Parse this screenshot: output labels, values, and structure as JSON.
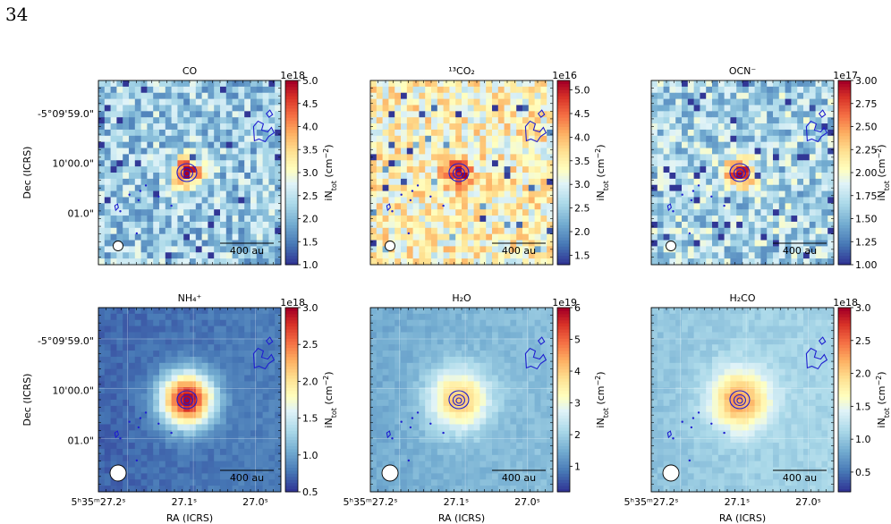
{
  "page": {
    "number": "34"
  },
  "chart_data": [
    {
      "type": "heatmap",
      "title": "CO",
      "xlabel": "",
      "ylabel": "Dec (ICRS)",
      "ytick_labels": [
        "-5°09'59.0\"",
        "10'00.0\"",
        "01.0\""
      ],
      "xtick_labels": [],
      "colorbar": {
        "label": "iN_tot (cm^-2)",
        "multiplier": "1e18",
        "range": [
          1.0,
          5.0
        ],
        "ticks": [
          "1.0",
          "1.5",
          "2.0",
          "2.5",
          "3.0",
          "3.5",
          "4.0",
          "4.5",
          "5.0"
        ]
      },
      "background_level": 2.2,
      "peak_value": 5.0,
      "scale_bar": "400 au",
      "colormap": "RdYlBu_r"
    },
    {
      "type": "heatmap",
      "title": "¹³CO₂",
      "xlabel": "",
      "ylabel": "",
      "ytick_labels": [],
      "xtick_labels": [],
      "colorbar": {
        "label": "iN_tot (cm^-2)",
        "multiplier": "1e16",
        "range": [
          1.3,
          5.2
        ],
        "ticks": [
          "1.5",
          "2.0",
          "2.5",
          "3.0",
          "3.5",
          "4.0",
          "4.5",
          "5.0"
        ]
      },
      "background_level": 3.4,
      "peak_value": 5.2,
      "scale_bar": "400 au",
      "colormap": "RdYlBu_r"
    },
    {
      "type": "heatmap",
      "title": "OCN⁻",
      "xlabel": "",
      "ylabel": "",
      "ytick_labels": [],
      "xtick_labels": [],
      "colorbar": {
        "label": "iN_tot (cm^-2)",
        "multiplier": "1e17",
        "range": [
          1.0,
          3.0
        ],
        "ticks": [
          "1.00",
          "1.25",
          "1.50",
          "1.75",
          "2.00",
          "2.25",
          "2.50",
          "2.75",
          "3.00"
        ]
      },
      "background_level": 1.65,
      "peak_value": 3.0,
      "scale_bar": "400 au",
      "colormap": "RdYlBu_r"
    },
    {
      "type": "heatmap",
      "title": "NH₄⁺",
      "xlabel": "RA (ICRS)",
      "ylabel": "Dec (ICRS)",
      "ytick_labels": [
        "-5°09'59.0\"",
        "10'00.0\"",
        "01.0\""
      ],
      "xtick_labels": [
        "5ʰ35ᵐ27.2ˢ",
        "27.1ˢ",
        "27.0ˢ"
      ],
      "colorbar": {
        "label": "iN_tot (cm^-2)",
        "multiplier": "1e18",
        "range": [
          0.5,
          3.0
        ],
        "ticks": [
          "0.5",
          "1.0",
          "1.5",
          "2.0",
          "2.5",
          "3.0"
        ]
      },
      "background_level": 0.75,
      "peak_value": 3.0,
      "scale_bar": "400 au",
      "colormap": "RdYlBu_r"
    },
    {
      "type": "heatmap",
      "title": "H₂O",
      "xlabel": "RA (ICRS)",
      "ylabel": "",
      "ytick_labels": [],
      "xtick_labels": [
        "5ʰ35ᵐ27.2ˢ",
        "27.1ˢ",
        "27.0ˢ"
      ],
      "colorbar": {
        "label": "iN_tot (cm^-2)",
        "multiplier": "1e19",
        "range": [
          0.2,
          6.0
        ],
        "ticks": [
          "1",
          "2",
          "3",
          "4",
          "5",
          "6"
        ]
      },
      "background_level": 1.6,
      "peak_value": 4.2,
      "scale_bar": "400 au",
      "colormap": "RdYlBu_r"
    },
    {
      "type": "heatmap",
      "title": "H₂CO",
      "xlabel": "RA (ICRS)",
      "ylabel": "",
      "ytick_labels": [],
      "xtick_labels": [
        "5ʰ35ᵐ27.2ˢ",
        "27.1ˢ",
        "27.0ˢ"
      ],
      "colorbar": {
        "label": "iN_tot (cm^-2)",
        "multiplier": "1e18",
        "range": [
          0.2,
          3.0
        ],
        "ticks": [
          "0.5",
          "1.0",
          "1.5",
          "2.0",
          "2.5",
          "3.0"
        ]
      },
      "background_level": 1.05,
      "peak_value": 2.3,
      "scale_bar": "400 au",
      "colormap": "RdYlBu_r"
    }
  ]
}
